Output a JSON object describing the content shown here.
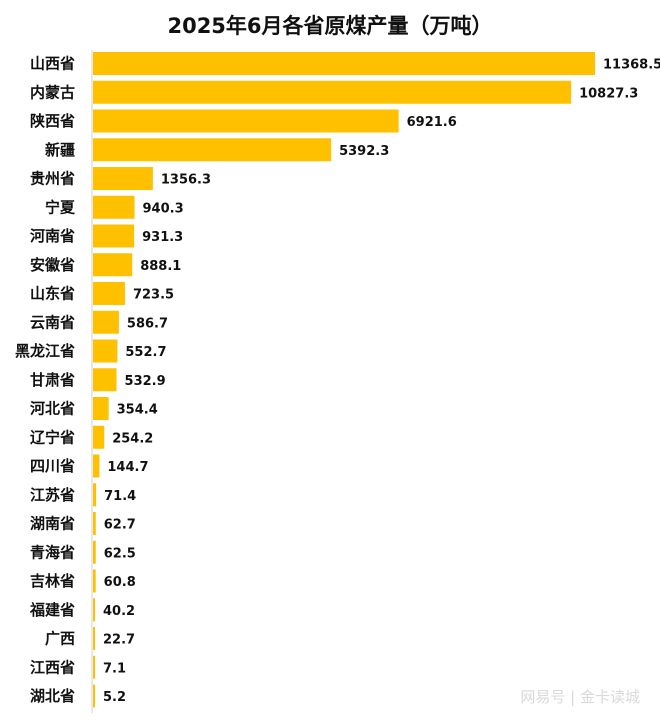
{
  "colors": {
    "bar": "#FFC000",
    "baseline": "#d0d0d0"
  },
  "watermark": {
    "text": "网易号 | 金卡读城"
  },
  "chart_data": {
    "type": "bar",
    "orientation": "horizontal",
    "title": "2025年6月各省原煤产量（万吨）",
    "categories": [
      "山西省",
      "内蒙古",
      "陕西省",
      "新疆",
      "贵州省",
      "宁夏",
      "河南省",
      "安徽省",
      "山东省",
      "云南省",
      "黑龙江省",
      "甘肃省",
      "河北省",
      "辽宁省",
      "四川省",
      "江苏省",
      "湖南省",
      "青海省",
      "吉林省",
      "福建省",
      "广西",
      "江西省",
      "湖北省"
    ],
    "values": [
      11368.5,
      10827.3,
      6921.6,
      5392.3,
      1356.3,
      940.3,
      931.3,
      888.1,
      723.5,
      586.7,
      552.7,
      532.9,
      354.4,
      254.2,
      144.7,
      71.4,
      62.7,
      62.5,
      60.8,
      40.2,
      22.7,
      7.1,
      5.2
    ],
    "value_labels": [
      "11368.5",
      "10827.3",
      "6921.6",
      "5392.3",
      "1356.3",
      "940.3",
      "931.3",
      "888.1",
      "723.5",
      "586.7",
      "552.7",
      "532.9",
      "354.4",
      "254.2",
      "144.7",
      "71.4",
      "62.7",
      "62.5",
      "60.8",
      "40.2",
      "22.7",
      "7.1",
      "5.2"
    ],
    "xlim": [
      0,
      11368.5
    ],
    "grid": false,
    "legend": "none",
    "xlabel": "",
    "ylabel": ""
  }
}
